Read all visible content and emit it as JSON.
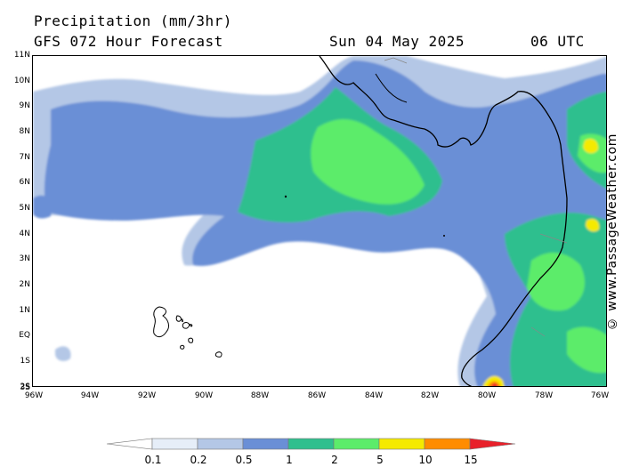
{
  "header": {
    "title": "Precipitation (mm/3hr)",
    "subtitle": "GFS 072 Hour Forecast",
    "date": "Sun 04 May 2025",
    "time": "06 UTC"
  },
  "credit": "© www.PassageWeather.com",
  "axes": {
    "lat_labels": [
      "11N",
      "10N",
      "9N",
      "8N",
      "7N",
      "6N",
      "5N",
      "4N",
      "3N",
      "2N",
      "1N",
      "EQ",
      "1S",
      "2S",
      "3S"
    ],
    "lon_labels": [
      "96W",
      "94W",
      "92W",
      "90W",
      "88W",
      "86W",
      "84W",
      "82W",
      "80W",
      "78W",
      "76W"
    ]
  },
  "legend": {
    "colors": [
      "#ffffff",
      "#e6eef8",
      "#b4c7e6",
      "#6a8fd6",
      "#2fbf8e",
      "#5cec6a",
      "#f5ea00",
      "#ff8c00",
      "#e8202a"
    ],
    "labels": [
      "0.1",
      "0.2",
      "0.5",
      "1",
      "2",
      "5",
      "10",
      "15"
    ]
  },
  "map_colors": {
    "very_light": "#e6eef8",
    "light_blue": "#b4c7e6",
    "blue": "#6a8fd6",
    "teal": "#2fbf8e",
    "green": "#5cec6a",
    "yellow": "#f5ea00",
    "orange": "#ff8c00",
    "red": "#e8202a"
  }
}
